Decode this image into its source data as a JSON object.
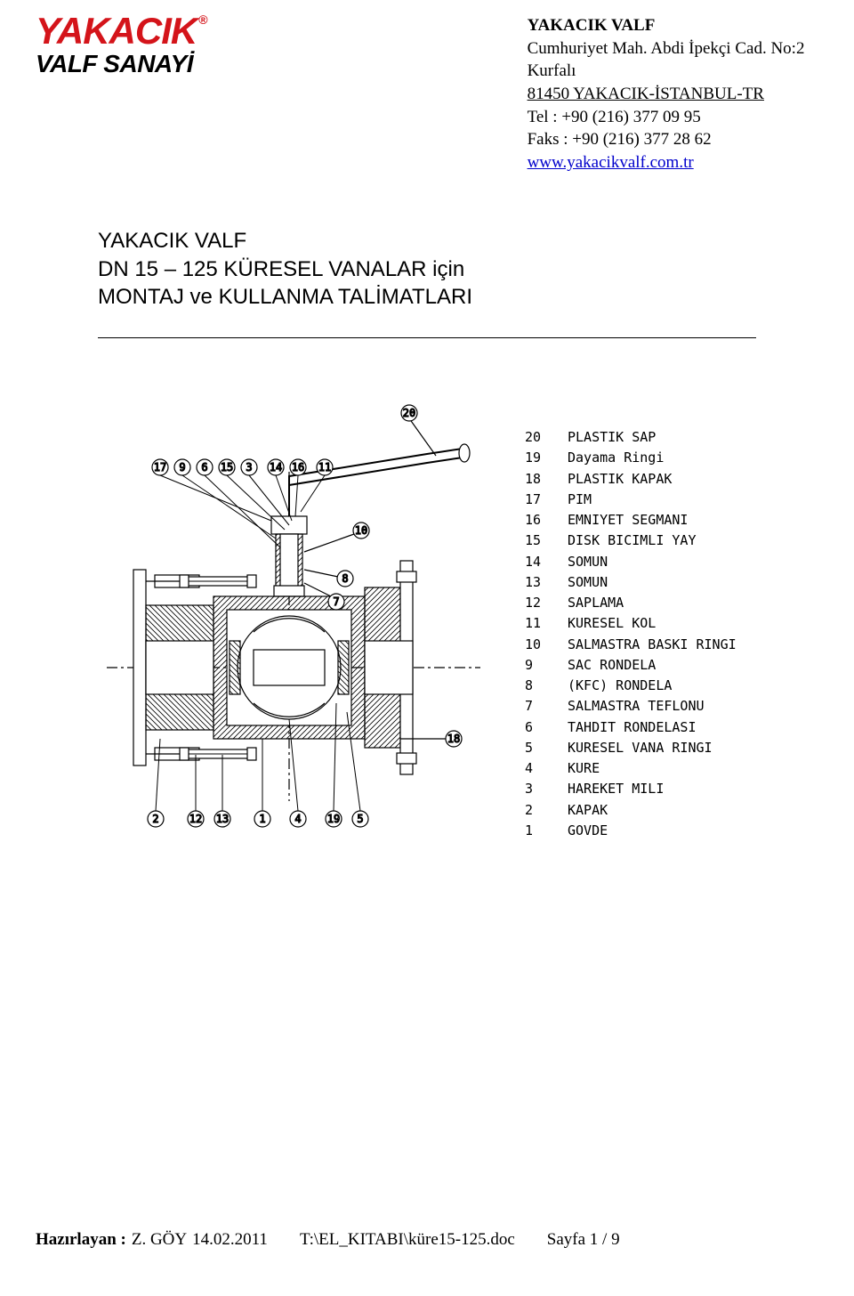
{
  "logo": {
    "top_text": "YAKACIK",
    "reg": "®",
    "bottom_text": "VALF SANAYİ"
  },
  "address": {
    "title": "YAKACIK VALF",
    "line1": "Cumhuriyet Mah. Abdi İpekçi Cad. No:2 Kurfalı",
    "line2": "81450 YAKACIK-İSTANBUL-TR",
    "tel": "Tel   : +90 (216) 377 09 95",
    "fax": "Faks : +90 (216) 377 28 62",
    "web": "www.yakacikvalf.com.tr"
  },
  "title": {
    "l1": "YAKACIK VALF",
    "l2": "DN 15 – 125 KÜRESEL VANALAR için",
    "l3": "MONTAJ ve KULLANMA TALİMATLARI"
  },
  "parts": [
    {
      "n": "20",
      "name": "PLASTIK SAP"
    },
    {
      "n": "19",
      "name": "Dayama Ringi"
    },
    {
      "n": "18",
      "name": "PLASTIK KAPAK"
    },
    {
      "n": "17",
      "name": "PIM"
    },
    {
      "n": "16",
      "name": "EMNIYET SEGMANI"
    },
    {
      "n": "15",
      "name": "DISK BICIMLI YAY"
    },
    {
      "n": "14",
      "name": "SOMUN"
    },
    {
      "n": "13",
      "name": "SOMUN"
    },
    {
      "n": "12",
      "name": "SAPLAMA"
    },
    {
      "n": "11",
      "name": "KURESEL KOL"
    },
    {
      "n": "10",
      "name": "SALMASTRA BASKI RINGI"
    },
    {
      "n": "9",
      "name": "SAC RONDELA"
    },
    {
      "n": "8",
      "name": "(KFC) RONDELA"
    },
    {
      "n": "7",
      "name": "SALMASTRA TEFLONU"
    },
    {
      "n": "6",
      "name": "TAHDIT RONDELASI"
    },
    {
      "n": "5",
      "name": "KURESEL VANA RINGI"
    },
    {
      "n": "4",
      "name": "KURE"
    },
    {
      "n": "3",
      "name": "HAREKET MILI"
    },
    {
      "n": "2",
      "name": "KAPAK"
    },
    {
      "n": "1",
      "name": "GOVDE"
    }
  ],
  "callouts_top": [
    "17",
    "9",
    "6",
    "15",
    "3",
    "14",
    "16",
    "11"
  ],
  "callouts_bottom": [
    "2",
    "12",
    "13",
    "1",
    "4",
    "19",
    "5"
  ],
  "callouts_right": [
    "20",
    "10",
    "8",
    "7",
    "18"
  ],
  "footer": {
    "prep_label": "Hazırlayan :",
    "prep_name": "Z. GÖY",
    "date": "14.02.2011",
    "path": "T:\\EL_KITABI\\küre15-125.doc",
    "page": "Sayfa 1 / 9"
  },
  "diagram_style": {
    "stroke": "#000000",
    "stroke_width": 1.2,
    "dash": "6 4",
    "hatch_spacing": 6,
    "circle_r": 9
  }
}
